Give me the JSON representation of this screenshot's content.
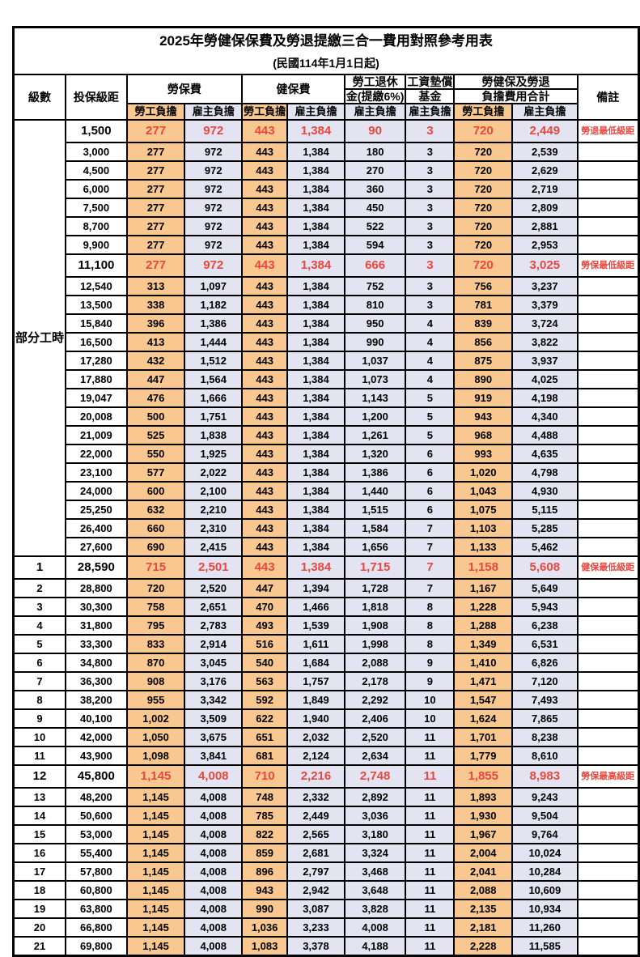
{
  "colors": {
    "orange": "#F8C890",
    "lavender": "#E4E3F1",
    "red": "#E8483F"
  },
  "table": {
    "title": "2025年勞健保保費及勞退提繳三合一費用對照參考用表",
    "subtitle": "(民國114年1月1日起)",
    "headers": {
      "level": "級數",
      "bracket": "投保級距",
      "labor_insurance": "勞保費",
      "health_insurance": "健保費",
      "pension_line1": "勞工退休",
      "pension_line2": "金(提繳6%)",
      "wage_fund_line1": "工資墊償",
      "wage_fund_line2": "基金",
      "total_line1": "勞健保及勞退",
      "total_line2": "負擔費用合計",
      "remark": "備註",
      "employee_share": "勞工負擔",
      "employer_share": "雇主負擔"
    },
    "part_time_label": "部分工時",
    "part_time_row_count": 23,
    "row_fields": [
      "level",
      "bracket",
      "labor_employee",
      "labor_employer",
      "health_employee",
      "health_employer",
      "pension_employer",
      "fund_employer",
      "total_employee",
      "total_employer",
      "remark",
      "highlight"
    ],
    "rows": [
      [
        "",
        "1,500",
        "277",
        "972",
        "443",
        "1,384",
        "90",
        "3",
        "720",
        "2,449",
        "勞退最低級距",
        1
      ],
      [
        "",
        "3,000",
        "277",
        "972",
        "443",
        "1,384",
        "180",
        "3",
        "720",
        "2,539",
        "",
        0
      ],
      [
        "",
        "4,500",
        "277",
        "972",
        "443",
        "1,384",
        "270",
        "3",
        "720",
        "2,629",
        "",
        0
      ],
      [
        "",
        "6,000",
        "277",
        "972",
        "443",
        "1,384",
        "360",
        "3",
        "720",
        "2,719",
        "",
        0
      ],
      [
        "",
        "7,500",
        "277",
        "972",
        "443",
        "1,384",
        "450",
        "3",
        "720",
        "2,809",
        "",
        0
      ],
      [
        "",
        "8,700",
        "277",
        "972",
        "443",
        "1,384",
        "522",
        "3",
        "720",
        "2,881",
        "",
        0
      ],
      [
        "",
        "9,900",
        "277",
        "972",
        "443",
        "1,384",
        "594",
        "3",
        "720",
        "2,953",
        "",
        0
      ],
      [
        "",
        "11,100",
        "277",
        "972",
        "443",
        "1,384",
        "666",
        "3",
        "720",
        "3,025",
        "勞保最低級距",
        1
      ],
      [
        "",
        "12,540",
        "313",
        "1,097",
        "443",
        "1,384",
        "752",
        "3",
        "756",
        "3,237",
        "",
        0
      ],
      [
        "",
        "13,500",
        "338",
        "1,182",
        "443",
        "1,384",
        "810",
        "3",
        "781",
        "3,379",
        "",
        0
      ],
      [
        "",
        "15,840",
        "396",
        "1,386",
        "443",
        "1,384",
        "950",
        "4",
        "839",
        "3,724",
        "",
        0
      ],
      [
        "",
        "16,500",
        "413",
        "1,444",
        "443",
        "1,384",
        "990",
        "4",
        "856",
        "3,822",
        "",
        0
      ],
      [
        "",
        "17,280",
        "432",
        "1,512",
        "443",
        "1,384",
        "1,037",
        "4",
        "875",
        "3,937",
        "",
        0
      ],
      [
        "",
        "17,880",
        "447",
        "1,564",
        "443",
        "1,384",
        "1,073",
        "4",
        "890",
        "4,025",
        "",
        0
      ],
      [
        "",
        "19,047",
        "476",
        "1,666",
        "443",
        "1,384",
        "1,143",
        "5",
        "919",
        "4,198",
        "",
        0
      ],
      [
        "",
        "20,008",
        "500",
        "1,751",
        "443",
        "1,384",
        "1,200",
        "5",
        "943",
        "4,340",
        "",
        0
      ],
      [
        "",
        "21,009",
        "525",
        "1,838",
        "443",
        "1,384",
        "1,261",
        "5",
        "968",
        "4,488",
        "",
        0
      ],
      [
        "",
        "22,000",
        "550",
        "1,925",
        "443",
        "1,384",
        "1,320",
        "6",
        "993",
        "4,635",
        "",
        0
      ],
      [
        "",
        "23,100",
        "577",
        "2,022",
        "443",
        "1,384",
        "1,386",
        "6",
        "1,020",
        "4,798",
        "",
        0
      ],
      [
        "",
        "24,000",
        "600",
        "2,100",
        "443",
        "1,384",
        "1,440",
        "6",
        "1,043",
        "4,930",
        "",
        0
      ],
      [
        "",
        "25,250",
        "632",
        "2,210",
        "443",
        "1,384",
        "1,515",
        "6",
        "1,075",
        "5,115",
        "",
        0
      ],
      [
        "",
        "26,400",
        "660",
        "2,310",
        "443",
        "1,384",
        "1,584",
        "7",
        "1,103",
        "5,285",
        "",
        0
      ],
      [
        "",
        "27,600",
        "690",
        "2,415",
        "443",
        "1,384",
        "1,656",
        "7",
        "1,133",
        "5,462",
        "",
        0
      ],
      [
        "1",
        "28,590",
        "715",
        "2,501",
        "443",
        "1,384",
        "1,715",
        "7",
        "1,158",
        "5,608",
        "健保最低級距",
        1
      ],
      [
        "2",
        "28,800",
        "720",
        "2,520",
        "447",
        "1,394",
        "1,728",
        "7",
        "1,167",
        "5,649",
        "",
        0
      ],
      [
        "3",
        "30,300",
        "758",
        "2,651",
        "470",
        "1,466",
        "1,818",
        "8",
        "1,228",
        "5,943",
        "",
        0
      ],
      [
        "4",
        "31,800",
        "795",
        "2,783",
        "493",
        "1,539",
        "1,908",
        "8",
        "1,288",
        "6,238",
        "",
        0
      ],
      [
        "5",
        "33,300",
        "833",
        "2,914",
        "516",
        "1,611",
        "1,998",
        "8",
        "1,349",
        "6,531",
        "",
        0
      ],
      [
        "6",
        "34,800",
        "870",
        "3,045",
        "540",
        "1,684",
        "2,088",
        "9",
        "1,410",
        "6,826",
        "",
        0
      ],
      [
        "7",
        "36,300",
        "908",
        "3,176",
        "563",
        "1,757",
        "2,178",
        "9",
        "1,471",
        "7,120",
        "",
        0
      ],
      [
        "8",
        "38,200",
        "955",
        "3,342",
        "592",
        "1,849",
        "2,292",
        "10",
        "1,547",
        "7,493",
        "",
        0
      ],
      [
        "9",
        "40,100",
        "1,002",
        "3,509",
        "622",
        "1,940",
        "2,406",
        "10",
        "1,624",
        "7,865",
        "",
        0
      ],
      [
        "10",
        "42,000",
        "1,050",
        "3,675",
        "651",
        "2,032",
        "2,520",
        "11",
        "1,701",
        "8,238",
        "",
        0
      ],
      [
        "11",
        "43,900",
        "1,098",
        "3,841",
        "681",
        "2,124",
        "2,634",
        "11",
        "1,779",
        "8,610",
        "",
        0
      ],
      [
        "12",
        "45,800",
        "1,145",
        "4,008",
        "710",
        "2,216",
        "2,748",
        "11",
        "1,855",
        "8,983",
        "勞保最高級距",
        1
      ],
      [
        "13",
        "48,200",
        "1,145",
        "4,008",
        "748",
        "2,332",
        "2,892",
        "11",
        "1,893",
        "9,243",
        "",
        0
      ],
      [
        "14",
        "50,600",
        "1,145",
        "4,008",
        "785",
        "2,449",
        "3,036",
        "11",
        "1,930",
        "9,504",
        "",
        0
      ],
      [
        "15",
        "53,000",
        "1,145",
        "4,008",
        "822",
        "2,565",
        "3,180",
        "11",
        "1,967",
        "9,764",
        "",
        0
      ],
      [
        "16",
        "55,400",
        "1,145",
        "4,008",
        "859",
        "2,681",
        "3,324",
        "11",
        "2,004",
        "10,024",
        "",
        0
      ],
      [
        "17",
        "57,800",
        "1,145",
        "4,008",
        "896",
        "2,797",
        "3,468",
        "11",
        "2,041",
        "10,284",
        "",
        0
      ],
      [
        "18",
        "60,800",
        "1,145",
        "4,008",
        "943",
        "2,942",
        "3,648",
        "11",
        "2,088",
        "10,609",
        "",
        0
      ],
      [
        "19",
        "63,800",
        "1,145",
        "4,008",
        "990",
        "3,087",
        "3,828",
        "11",
        "2,135",
        "10,934",
        "",
        0
      ],
      [
        "20",
        "66,800",
        "1,145",
        "4,008",
        "1,036",
        "3,233",
        "4,008",
        "11",
        "2,181",
        "11,260",
        "",
        0
      ],
      [
        "21",
        "69,800",
        "1,145",
        "4,008",
        "1,083",
        "3,378",
        "4,188",
        "11",
        "2,228",
        "11,585",
        "",
        0
      ]
    ]
  }
}
